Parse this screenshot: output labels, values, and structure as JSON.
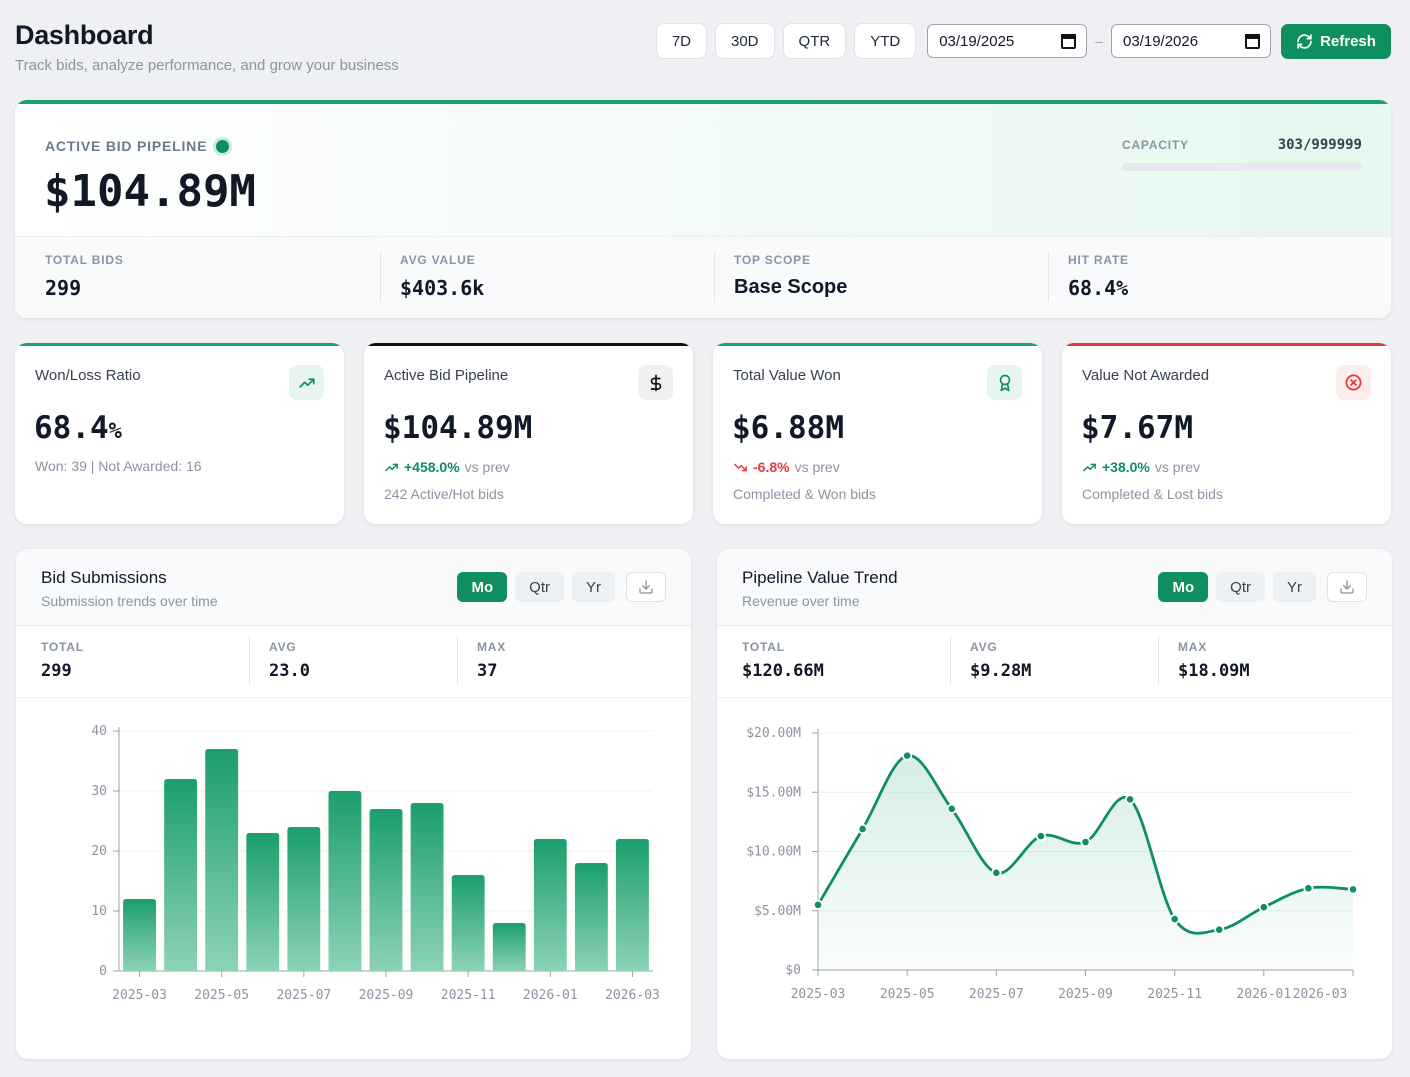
{
  "header": {
    "title": "Dashboard",
    "subtitle": "Track bids, analyze performance, and grow your business",
    "ranges": [
      "7D",
      "30D",
      "QTR",
      "YTD"
    ],
    "date_from": "03/19/2025",
    "date_to": "03/19/2026",
    "date_sep": "–",
    "refresh_label": "Refresh"
  },
  "hero": {
    "label": "ACTIVE BID PIPELINE",
    "value": "$104.89M",
    "capacity_label": "CAPACITY",
    "capacity_value": "303/999999",
    "capacity_fraction": 0.0003,
    "stats": [
      {
        "label": "TOTAL BIDS",
        "value": "299"
      },
      {
        "label": "AVG VALUE",
        "value": "$403.6k"
      },
      {
        "label": "TOP SCOPE",
        "value": "Base Scope"
      },
      {
        "label": "HIT RATE",
        "value": "68.4%"
      }
    ]
  },
  "kpis": [
    {
      "title": "Won/Loss Ratio",
      "value": "68.4",
      "unit": "%",
      "detail": "Won: 39 | Not Awarded: 16",
      "accent": "#1aa06a",
      "icon": "trend-up-icon"
    },
    {
      "title": "Active Bid Pipeline",
      "value": "$104.89M",
      "delta": "+458.0%",
      "delta_suffix": "vs prev",
      "detail": "242 Active/Hot bids",
      "accent": "#111111",
      "icon": "dollar-icon"
    },
    {
      "title": "Total Value Won",
      "value": "$6.88M",
      "delta": "-6.8%",
      "delta_suffix": "vs prev",
      "detail": "Completed & Won bids",
      "accent": "#1aa06a",
      "icon": "award-icon"
    },
    {
      "title": "Value Not Awarded",
      "value": "$7.67M",
      "delta": "+38.0%",
      "delta_suffix": "vs prev",
      "detail": "Completed & Lost bids",
      "accent": "#e03a3a",
      "icon": "x-circle-icon"
    }
  ],
  "panels": [
    {
      "title": "Bid Submissions",
      "subtitle": "Submission trends over time",
      "tabs": [
        "Mo",
        "Qtr",
        "Yr"
      ],
      "active_tab": "Mo",
      "stats": [
        {
          "label": "TOTAL",
          "value": "299"
        },
        {
          "label": "AVG",
          "value": "23.0"
        },
        {
          "label": "MAX",
          "value": "37"
        }
      ]
    },
    {
      "title": "Pipeline Value Trend",
      "subtitle": "Revenue over time",
      "tabs": [
        "Mo",
        "Qtr",
        "Yr"
      ],
      "active_tab": "Mo",
      "stats": [
        {
          "label": "TOTAL",
          "value": "$120.66M"
        },
        {
          "label": "AVG",
          "value": "$9.28M"
        },
        {
          "label": "MAX",
          "value": "$18.09M"
        }
      ]
    }
  ],
  "chart_data": [
    {
      "type": "bar",
      "categories": [
        "2025-03",
        "2025-04",
        "2025-05",
        "2025-06",
        "2025-07",
        "2025-08",
        "2025-09",
        "2025-10",
        "2025-11",
        "2025-12",
        "2026-01",
        "2026-02",
        "2026-03"
      ],
      "values": [
        12,
        32,
        37,
        23,
        24,
        30,
        27,
        28,
        16,
        8,
        22,
        18,
        22
      ],
      "x_tick_labels": [
        "2025-03",
        "2025-05",
        "2025-07",
        "2025-09",
        "2025-11",
        "2026-01",
        "2026-03"
      ],
      "y_ticks": [
        0,
        10,
        20,
        30,
        40
      ],
      "ylim": [
        0,
        40
      ],
      "grid": true,
      "color": "#1aa06a"
    },
    {
      "type": "line",
      "x": [
        "2025-03",
        "2025-04",
        "2025-05",
        "2025-06",
        "2025-07",
        "2025-08",
        "2025-09",
        "2025-10",
        "2025-11",
        "2025-12",
        "2026-01",
        "2026-02",
        "2026-03"
      ],
      "values": [
        5.5,
        11.9,
        18.09,
        13.6,
        8.2,
        11.3,
        10.8,
        14.4,
        4.3,
        3.4,
        5.3,
        6.9,
        6.8
      ],
      "x_tick_labels": [
        "2025-03",
        "2025-05",
        "2025-07",
        "2025-09",
        "2025-11",
        "2026-01",
        "2026-03"
      ],
      "y_ticks": [
        0,
        5,
        10,
        15,
        20
      ],
      "y_tick_labels": [
        "$0",
        "$5.00M",
        "$10.00M",
        "$15.00M",
        "$20.00M"
      ],
      "ylim": [
        0,
        20
      ],
      "grid": true,
      "area_fill": true,
      "color": "#0f8f5f"
    }
  ]
}
